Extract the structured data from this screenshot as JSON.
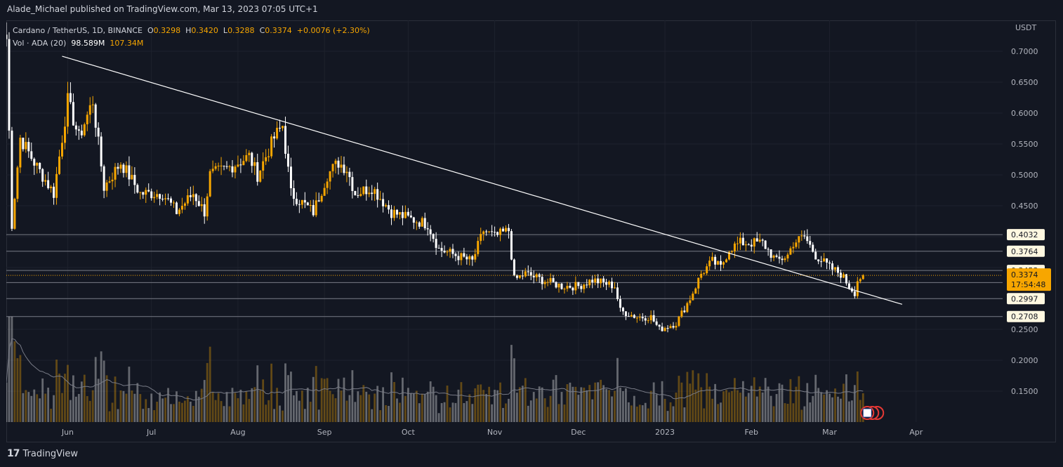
{
  "header": {
    "publish_text": "Alade_Michael published on TradingView.com, Mar 13, 2023 07:05 UTC+1"
  },
  "legend": {
    "symbol": "Cardano / TetherUS, 1D, BINANCE",
    "open_label": "O",
    "open": "0.3298",
    "high_label": "H",
    "high": "0.3420",
    "low_label": "L",
    "low": "0.3288",
    "close_label": "C",
    "close": "0.3374",
    "change": "+0.0076 (+2.30%)",
    "vol_label": "Vol · ADA (20)",
    "vol_value": "98.589M",
    "vol_ma": "107.34M"
  },
  "footer": {
    "brand": "TradingView",
    "logo": "17"
  },
  "colors": {
    "background": "#131722",
    "up": "#f7a600",
    "down": "#ffffff",
    "grid": "#1e222d",
    "level_line": "#787b86",
    "trendline": "#ffffff",
    "current_price": "#f7a600"
  },
  "chart_data": {
    "type": "candlestick",
    "currency": "USDT",
    "ylim": [
      0.1,
      0.75
    ],
    "y_ticks": [
      0.15,
      0.2,
      0.25,
      0.3,
      0.35,
      0.4,
      0.45,
      0.5,
      0.55,
      0.6,
      0.65,
      0.7
    ],
    "y_tick_labels": [
      "0.1500",
      "0.2000",
      "0.2500",
      "0.3000",
      "0.3500",
      "0.4000",
      "0.4500",
      "0.5000",
      "0.5500",
      "0.6000",
      "0.6500",
      "0.7000"
    ],
    "x_tick_labels": [
      "Jun",
      "Jul",
      "Aug",
      "Sep",
      "Oct",
      "Nov",
      "Dec",
      "2023",
      "Feb",
      "Mar",
      "Apr"
    ],
    "x_ticks": [
      "2022-06-01",
      "2022-07-01",
      "2022-08-01",
      "2022-09-01",
      "2022-10-01",
      "2022-11-01",
      "2022-12-01",
      "2023-01-01",
      "2023-02-01",
      "2023-03-01",
      "2023-04-01"
    ],
    "x_range": [
      "2022-05-10",
      "2023-05-02"
    ],
    "horizontal_levels": [
      0.4032,
      0.3764,
      0.3453,
      0.3257,
      0.2997,
      0.2708
    ],
    "level_labels": [
      "0.4032",
      "0.3764",
      "0.3453",
      "0.3257",
      "0.2997",
      "0.2708"
    ],
    "current_price": 0.3374,
    "current_price_label": "0.3374",
    "countdown": "17:54:48",
    "trendline": {
      "from": [
        "2022-05-30",
        0.692
      ],
      "to": [
        "2023-03-27",
        0.2905
      ]
    },
    "price_anchors": [
      [
        "2022-05-10",
        0.72
      ],
      [
        "2022-05-12",
        0.42
      ],
      [
        "2022-05-15",
        0.56
      ],
      [
        "2022-05-20",
        0.52
      ],
      [
        "2022-05-27",
        0.47
      ],
      [
        "2022-06-01",
        0.62
      ],
      [
        "2022-06-05",
        0.56
      ],
      [
        "2022-06-10",
        0.62
      ],
      [
        "2022-06-14",
        0.48
      ],
      [
        "2022-06-20",
        0.52
      ],
      [
        "2022-06-27",
        0.47
      ],
      [
        "2022-07-05",
        0.47
      ],
      [
        "2022-07-10",
        0.44
      ],
      [
        "2022-07-16",
        0.47
      ],
      [
        "2022-07-20",
        0.44
      ],
      [
        "2022-07-22",
        0.5
      ],
      [
        "2022-07-28",
        0.51
      ],
      [
        "2022-08-05",
        0.53
      ],
      [
        "2022-08-08",
        0.5
      ],
      [
        "2022-08-14",
        0.56
      ],
      [
        "2022-08-17",
        0.58
      ],
      [
        "2022-08-20",
        0.47
      ],
      [
        "2022-08-28",
        0.44
      ],
      [
        "2022-09-02",
        0.5
      ],
      [
        "2022-09-06",
        0.52
      ],
      [
        "2022-09-09",
        0.51
      ],
      [
        "2022-09-12",
        0.47
      ],
      [
        "2022-09-18",
        0.48
      ],
      [
        "2022-09-25",
        0.44
      ],
      [
        "2022-10-01",
        0.43
      ],
      [
        "2022-10-08",
        0.42
      ],
      [
        "2022-10-12",
        0.38
      ],
      [
        "2022-10-18",
        0.37
      ],
      [
        "2022-10-24",
        0.36
      ],
      [
        "2022-10-28",
        0.41
      ],
      [
        "2022-11-01",
        0.4
      ],
      [
        "2022-11-06",
        0.41
      ],
      [
        "2022-11-08",
        0.33
      ],
      [
        "2022-11-12",
        0.34
      ],
      [
        "2022-11-18",
        0.33
      ],
      [
        "2022-11-25",
        0.32
      ],
      [
        "2022-12-01",
        0.32
      ],
      [
        "2022-12-06",
        0.33
      ],
      [
        "2022-12-14",
        0.32
      ],
      [
        "2022-12-16",
        0.28
      ],
      [
        "2022-12-22",
        0.27
      ],
      [
        "2022-12-27",
        0.27
      ],
      [
        "2022-12-30",
        0.25
      ],
      [
        "2023-01-05",
        0.26
      ],
      [
        "2023-01-10",
        0.3
      ],
      [
        "2023-01-14",
        0.34
      ],
      [
        "2023-01-18",
        0.36
      ],
      [
        "2023-01-21",
        0.35
      ],
      [
        "2023-01-24",
        0.38
      ],
      [
        "2023-01-28",
        0.39
      ],
      [
        "2023-02-01",
        0.39
      ],
      [
        "2023-02-05",
        0.39
      ],
      [
        "2023-02-10",
        0.36
      ],
      [
        "2023-02-14",
        0.37
      ],
      [
        "2023-02-16",
        0.39
      ],
      [
        "2023-02-20",
        0.4
      ],
      [
        "2023-02-24",
        0.37
      ],
      [
        "2023-03-01",
        0.35
      ],
      [
        "2023-03-05",
        0.34
      ],
      [
        "2023-03-08",
        0.32
      ],
      [
        "2023-03-10",
        0.31
      ],
      [
        "2023-03-11",
        0.33
      ],
      [
        "2023-03-13",
        0.3374
      ]
    ]
  }
}
